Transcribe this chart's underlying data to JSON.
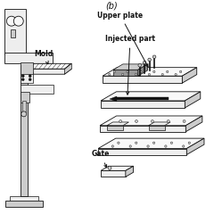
{
  "title_b": "(b)",
  "label_mold": "Mold",
  "label_upper_plate": "Upper plate",
  "label_injected_part": "Injected part",
  "label_gate": "Gate",
  "bg_color": "#ffffff",
  "dark_color": "#111111",
  "fill_light": "#eeeeee",
  "fill_mid": "#cccccc",
  "fill_dark": "#999999",
  "fill_white": "#f8f8f8"
}
